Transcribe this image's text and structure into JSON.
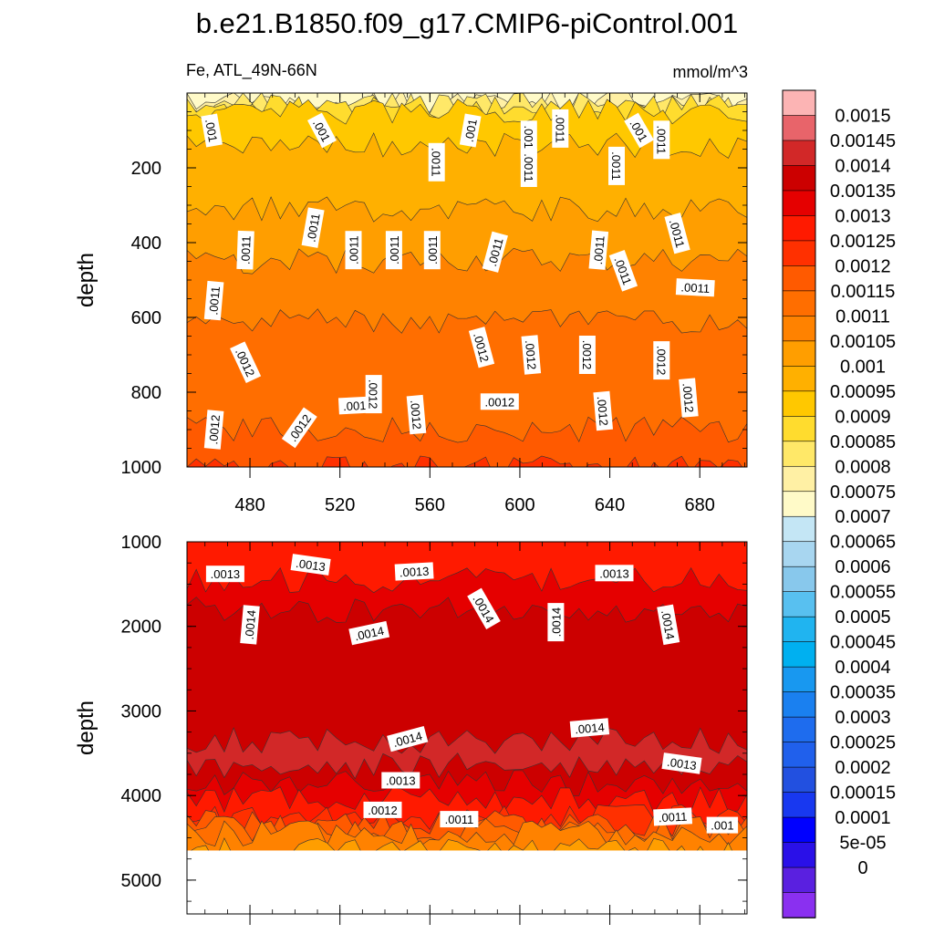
{
  "chart_data": [
    {
      "type": "heatmap",
      "title": "b.e21.B1850.f09_g17.CMIP6-piControl.001",
      "subtitle_left": "Fe, ATL_49N-66N",
      "subtitle_right": "mmol/m^3",
      "ylabel": "depth",
      "xlim": [
        452,
        701
      ],
      "ylim": [
        1000,
        0
      ],
      "xticks": [
        480,
        520,
        560,
        600,
        640,
        680
      ],
      "xtick_labels": [
        "480",
        "520",
        "560",
        "600",
        "640",
        "680"
      ],
      "yticks": [
        200,
        400,
        600,
        800,
        1000
      ],
      "ytick_labels": [
        "200",
        "400",
        "600",
        "800",
        "1000"
      ],
      "grid": false,
      "contour_band_depths": [
        {
          "upper_value": 0.00075,
          "depth": 10
        },
        {
          "upper_value": 0.0008,
          "depth": 20
        },
        {
          "upper_value": 0.00085,
          "depth": 30
        },
        {
          "upper_value": 0.0009,
          "depth": 38
        },
        {
          "upper_value": 0.00095,
          "depth": 50
        },
        {
          "upper_value": 0.001,
          "depth": 140
        },
        {
          "upper_value": 0.00105,
          "depth": 310
        },
        {
          "upper_value": 0.0011,
          "depth": 450
        },
        {
          "upper_value": 0.00115,
          "depth": 610
        },
        {
          "upper_value": 0.0012,
          "depth": 900
        },
        {
          "upper_value": 0.00125,
          "depth": 1000
        }
      ],
      "contour_labels": [
        {
          "text": ".001",
          "x": 463,
          "y": 100,
          "angle": 80
        },
        {
          "text": ".001",
          "x": 512,
          "y": 100,
          "angle": 62
        },
        {
          "text": ".001",
          "x": 578,
          "y": 100,
          "angle": -80
        },
        {
          "text": ".0011",
          "x": 618,
          "y": 95,
          "angle": 90
        },
        {
          "text": ".001",
          "x": 653,
          "y": 100,
          "angle": 60
        },
        {
          "text": ".0011",
          "x": 604,
          "y": 125,
          "angle": 90
        },
        {
          "text": ".0011",
          "x": 663,
          "y": 125,
          "angle": 90
        },
        {
          "text": ".0011",
          "x": 563,
          "y": 185,
          "angle": 90
        },
        {
          "text": ".0011",
          "x": 604,
          "y": 200,
          "angle": 90
        },
        {
          "text": ".0011",
          "x": 643,
          "y": 195,
          "angle": 90
        },
        {
          "text": ".0011",
          "x": 508,
          "y": 360,
          "angle": -80
        },
        {
          "text": ".0011",
          "x": 478,
          "y": 420,
          "angle": -88
        },
        {
          "text": ".0011",
          "x": 526,
          "y": 420,
          "angle": -90
        },
        {
          "text": ".0011",
          "x": 544,
          "y": 420,
          "angle": -90
        },
        {
          "text": ".0011",
          "x": 561,
          "y": 420,
          "angle": -90
        },
        {
          "text": ".0011",
          "x": 589,
          "y": 425,
          "angle": -75
        },
        {
          "text": ".0011",
          "x": 635,
          "y": 420,
          "angle": -85
        },
        {
          "text": ".0011",
          "x": 670,
          "y": 375,
          "angle": 75
        },
        {
          "text": ".0011",
          "x": 646,
          "y": 475,
          "angle": 70
        },
        {
          "text": ".0011",
          "x": 464,
          "y": 555,
          "angle": -85
        },
        {
          "text": ".0011",
          "x": 678,
          "y": 520,
          "angle": 3
        },
        {
          "text": ".0012",
          "x": 478,
          "y": 720,
          "angle": 65
        },
        {
          "text": ".0012",
          "x": 583,
          "y": 680,
          "angle": 75
        },
        {
          "text": ".0012",
          "x": 605,
          "y": 700,
          "angle": 85
        },
        {
          "text": ".0012",
          "x": 630,
          "y": 700,
          "angle": 90
        },
        {
          "text": ".0012",
          "x": 663,
          "y": 715,
          "angle": 90
        },
        {
          "text": ".0012",
          "x": 464,
          "y": 900,
          "angle": -85
        },
        {
          "text": ".0012",
          "x": 502,
          "y": 895,
          "angle": -55
        },
        {
          "text": ".0012",
          "x": 528,
          "y": 835,
          "angle": -3
        },
        {
          "text": ".0012",
          "x": 535,
          "y": 805,
          "angle": 90
        },
        {
          "text": ".0012",
          "x": 554,
          "y": 860,
          "angle": 85
        },
        {
          "text": ".0012",
          "x": 591,
          "y": 825,
          "angle": 0
        },
        {
          "text": ".0012",
          "x": 637,
          "y": 850,
          "angle": 85
        },
        {
          "text": ".0012",
          "x": 675,
          "y": 815,
          "angle": 85
        }
      ]
    },
    {
      "type": "heatmap",
      "ylabel": "depth",
      "xlim": [
        452,
        701
      ],
      "ylim": [
        5400,
        1000
      ],
      "yticks": [
        1000,
        2000,
        3000,
        4000,
        5000
      ],
      "ytick_labels": [
        "1000",
        "2000",
        "3000",
        "4000",
        "5000"
      ],
      "grid": false,
      "missing_below_depth": 4650,
      "contour_band_depths": [
        {
          "upper_value": 0.0013,
          "depth": 1050
        },
        {
          "upper_value": 0.00135,
          "depth": 1450
        },
        {
          "upper_value": 0.0014,
          "depth": 1800
        },
        {
          "upper_value": 0.00145,
          "depth": 3350
        },
        {
          "upper_value": 0.0014,
          "depth": 3650
        },
        {
          "upper_value": 0.00135,
          "depth": 3850
        },
        {
          "upper_value": 0.0013,
          "depth": 4050
        },
        {
          "upper_value": 0.00125,
          "depth": 4250
        },
        {
          "upper_value": 0.0012,
          "depth": 4330
        },
        {
          "upper_value": 0.00115,
          "depth": 4400
        },
        {
          "upper_value": 0.0011,
          "depth": 4450
        },
        {
          "upper_value": 0.00105,
          "depth": 4650
        }
      ],
      "contour_labels": [
        {
          "text": ".0013",
          "x": 469,
          "y": 1380,
          "angle": 0
        },
        {
          "text": ".0013",
          "x": 507,
          "y": 1270,
          "angle": 8
        },
        {
          "text": ".0013",
          "x": 553,
          "y": 1350,
          "angle": -3
        },
        {
          "text": ".0013",
          "x": 642,
          "y": 1370,
          "angle": 0
        },
        {
          "text": ".0014",
          "x": 480,
          "y": 1980,
          "angle": -85
        },
        {
          "text": ".0014",
          "x": 533,
          "y": 2080,
          "angle": -12
        },
        {
          "text": ".0014",
          "x": 584,
          "y": 1790,
          "angle": 60
        },
        {
          "text": ".0014",
          "x": 616,
          "y": 1950,
          "angle": -90
        },
        {
          "text": ".0014",
          "x": 666,
          "y": 1980,
          "angle": 80
        },
        {
          "text": ".0014",
          "x": 550,
          "y": 3330,
          "angle": -15
        },
        {
          "text": ".0014",
          "x": 631,
          "y": 3200,
          "angle": -5
        },
        {
          "text": ".0013",
          "x": 547,
          "y": 3820,
          "angle": 0
        },
        {
          "text": ".0013",
          "x": 672,
          "y": 3620,
          "angle": 8
        },
        {
          "text": ".0012",
          "x": 539,
          "y": 4170,
          "angle": 0
        },
        {
          "text": ".0011",
          "x": 573,
          "y": 4280,
          "angle": 0
        },
        {
          "text": ".0011",
          "x": 668,
          "y": 4250,
          "angle": -3
        },
        {
          "text": ".001",
          "x": 690,
          "y": 4350,
          "angle": 0
        }
      ]
    }
  ],
  "colorbar": {
    "labels": [
      "0.0015",
      "0.00145",
      "0.0014",
      "0.00135",
      "0.0013",
      "0.00125",
      "0.0012",
      "0.00115",
      "0.0011",
      "0.00105",
      "0.001",
      "0.00095",
      "0.0009",
      "0.00085",
      "0.0008",
      "0.00075",
      "0.0007",
      "0.00065",
      "0.0006",
      "0.00055",
      "0.0005",
      "0.00045",
      "0.0004",
      "0.00035",
      "0.0003",
      "0.00025",
      "0.0002",
      "0.00015",
      "0.0001",
      "5e-05",
      "0"
    ],
    "colors": [
      "#fcb4b4",
      "#e8646a",
      "#d22828",
      "#cc0000",
      "#e50000",
      "#ff1a00",
      "#ff3000",
      "#ff5a00",
      "#ff6e00",
      "#ff8200",
      "#ff9e00",
      "#ffb000",
      "#ffc800",
      "#ffdc2e",
      "#ffe868",
      "#fff0a4",
      "#fffac8",
      "#c4e6f5",
      "#a8d6f0",
      "#88c8ec",
      "#58c0f0",
      "#20b4f0",
      "#00b0f0",
      "#1898f0",
      "#1a80f0",
      "#1e6cee",
      "#2060ec",
      "#2250e0",
      "#1838f0",
      "#0000ff",
      "#2a10e8",
      "#5a20e0",
      "#8a30f0"
    ]
  }
}
